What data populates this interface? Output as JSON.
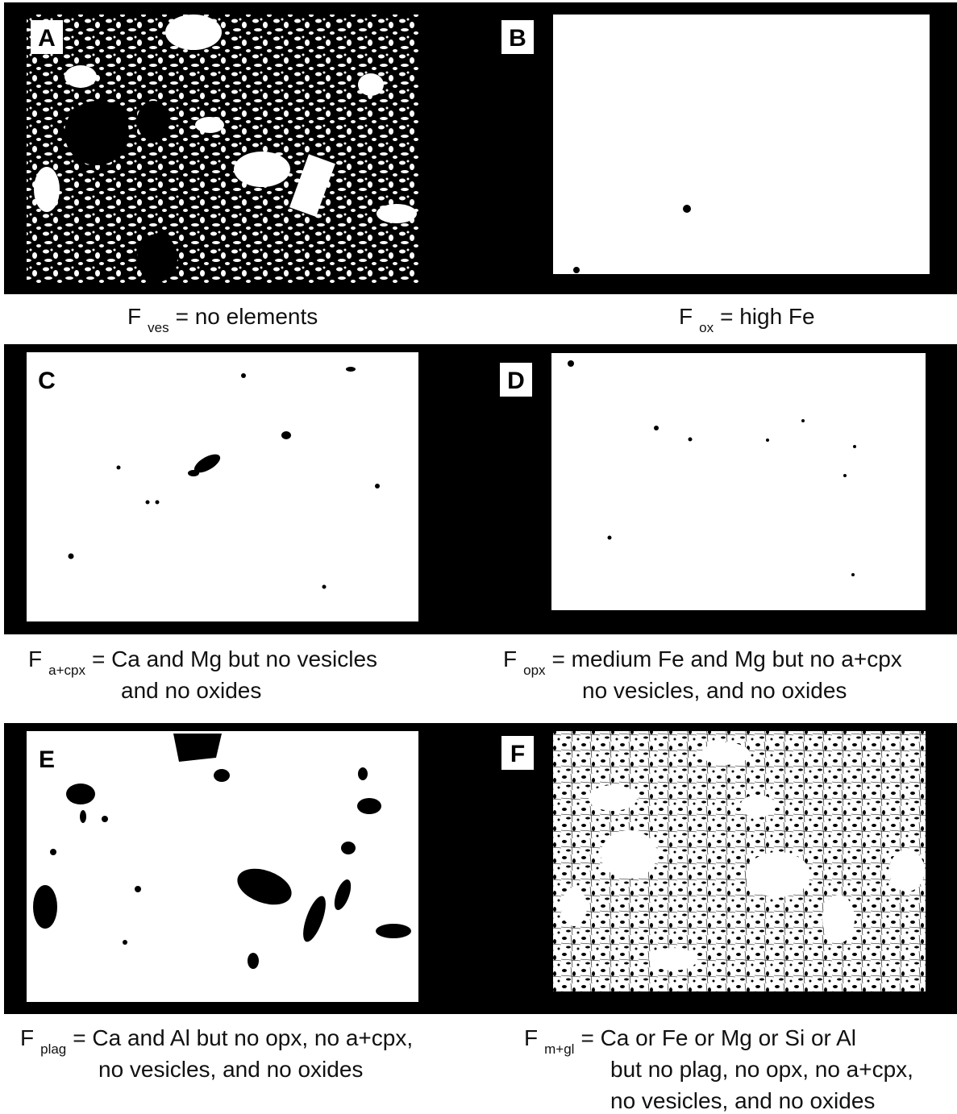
{
  "panels": [
    {
      "label": "A",
      "caption": {
        "main": "F",
        "sub": "ves",
        "lines": [
          "= no elements"
        ]
      }
    },
    {
      "label": "B",
      "caption": {
        "main": "F",
        "sub": "ox",
        "lines": [
          "= high Fe"
        ]
      }
    },
    {
      "label": "C",
      "caption": {
        "main": "F",
        "sub": "a+cpx",
        "lines": [
          "= Ca and Mg but no vesicles",
          "and no oxides"
        ]
      }
    },
    {
      "label": "D",
      "caption": {
        "main": "F",
        "sub": "opx",
        "lines": [
          "= medium Fe and Mg but no a+cpx",
          "no vesicles, and no oxides"
        ]
      }
    },
    {
      "label": "E",
      "caption": {
        "main": "F",
        "sub": "plag",
        "lines": [
          "= Ca and Al but no opx, no a+cpx,",
          "no vesicles, and no oxides"
        ]
      }
    },
    {
      "label": "F",
      "caption": {
        "main": "F",
        "sub": "m+gl",
        "lines": [
          "= Ca or Fe or Mg or Si or Al",
          "but no plag, no opx, no a+cpx,",
          "no vesicles, and no oxides"
        ]
      }
    }
  ]
}
